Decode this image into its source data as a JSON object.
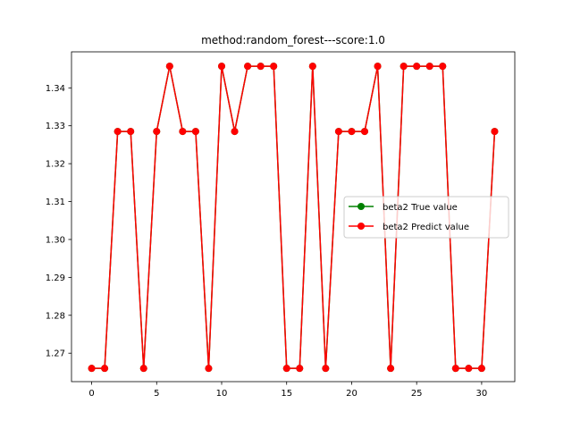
{
  "chart_data": {
    "type": "line",
    "title": "method:random_forest---score:1.0",
    "xlabel": "",
    "ylabel": "",
    "xlim": [
      -1.55,
      32.55
    ],
    "ylim": [
      1.2625,
      1.3495
    ],
    "x_ticks": [
      0,
      5,
      10,
      15,
      20,
      25,
      30
    ],
    "y_ticks": [
      1.27,
      1.28,
      1.29,
      1.3,
      1.31,
      1.32,
      1.33,
      1.34
    ],
    "y_tick_labels": [
      "1.27",
      "1.28",
      "1.29",
      "1.30",
      "1.31",
      "1.32",
      "1.33",
      "1.34"
    ],
    "grid": false,
    "legend": "center-right",
    "x": [
      0,
      1,
      2,
      3,
      4,
      5,
      6,
      7,
      8,
      9,
      10,
      11,
      12,
      13,
      14,
      15,
      16,
      17,
      18,
      19,
      20,
      21,
      22,
      23,
      24,
      25,
      26,
      27,
      28,
      29,
      30,
      31
    ],
    "series": [
      {
        "name": "beta2 True value",
        "color": "#008000",
        "marker": "circle",
        "values": [
          1.266,
          1.266,
          1.3285,
          1.3285,
          1.266,
          1.3285,
          1.3457,
          1.3285,
          1.3285,
          1.266,
          1.3457,
          1.3285,
          1.3457,
          1.3457,
          1.3457,
          1.266,
          1.266,
          1.3457,
          1.266,
          1.3285,
          1.3285,
          1.3285,
          1.3457,
          1.266,
          1.3457,
          1.3457,
          1.3457,
          1.3457,
          1.266,
          1.266,
          1.266,
          1.3285
        ]
      },
      {
        "name": "beta2 Predict value",
        "color": "#ff0000",
        "marker": "circle",
        "values": [
          1.266,
          1.266,
          1.3285,
          1.3285,
          1.266,
          1.3285,
          1.3457,
          1.3285,
          1.3285,
          1.266,
          1.3457,
          1.3285,
          1.3457,
          1.3457,
          1.3457,
          1.266,
          1.266,
          1.3457,
          1.266,
          1.3285,
          1.3285,
          1.3285,
          1.3457,
          1.266,
          1.3457,
          1.3457,
          1.3457,
          1.3457,
          1.266,
          1.266,
          1.266,
          1.3285
        ]
      }
    ]
  }
}
